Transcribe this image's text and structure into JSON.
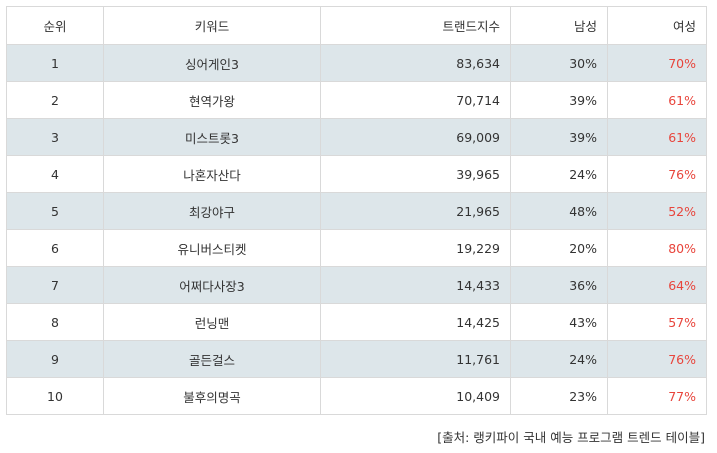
{
  "table": {
    "headers": {
      "rank": "순위",
      "keyword": "키워드",
      "trend_index": "트랜드지수",
      "male": "남성",
      "female": "여성"
    },
    "rows": [
      {
        "rank": "1",
        "keyword": "싱어게인3",
        "trend_index": "83,634",
        "male": "30%",
        "female": "70%"
      },
      {
        "rank": "2",
        "keyword": "현역가왕",
        "trend_index": "70,714",
        "male": "39%",
        "female": "61%"
      },
      {
        "rank": "3",
        "keyword": "미스트롯3",
        "trend_index": "69,009",
        "male": "39%",
        "female": "61%"
      },
      {
        "rank": "4",
        "keyword": "나혼자산다",
        "trend_index": "39,965",
        "male": "24%",
        "female": "76%"
      },
      {
        "rank": "5",
        "keyword": "최강야구",
        "trend_index": "21,965",
        "male": "48%",
        "female": "52%"
      },
      {
        "rank": "6",
        "keyword": "유니버스티켓",
        "trend_index": "19,229",
        "male": "20%",
        "female": "80%"
      },
      {
        "rank": "7",
        "keyword": "어쩌다사장3",
        "trend_index": "14,433",
        "male": "36%",
        "female": "64%"
      },
      {
        "rank": "8",
        "keyword": "런닝맨",
        "trend_index": "14,425",
        "male": "43%",
        "female": "57%"
      },
      {
        "rank": "9",
        "keyword": "골든걸스",
        "trend_index": "11,761",
        "male": "24%",
        "female": "76%"
      },
      {
        "rank": "10",
        "keyword": "불후의명곡",
        "trend_index": "10,409",
        "male": "23%",
        "female": "77%"
      }
    ]
  },
  "source": "[출처: 랭키파이 국내 예능 프로그램 트렌드 테이블]",
  "colors": {
    "shaded_row": "#dde6ea",
    "female_text": "#e8453c"
  }
}
